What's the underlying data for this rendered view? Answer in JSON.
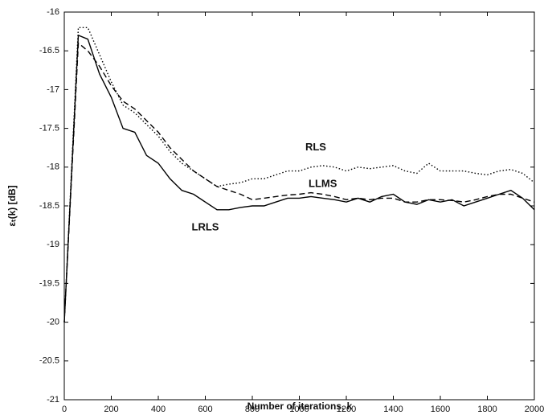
{
  "chart_data": {
    "type": "line",
    "x_label": "Number of iterations, k",
    "y_label": "εₜ(k) [dB]",
    "x": [
      0,
      60,
      100,
      150,
      200,
      250,
      300,
      350,
      400,
      450,
      500,
      550,
      600,
      650,
      700,
      750,
      800,
      850,
      900,
      950,
      1000,
      1050,
      1100,
      1150,
      1200,
      1250,
      1300,
      1350,
      1400,
      1450,
      1500,
      1550,
      1600,
      1650,
      1700,
      1750,
      1800,
      1850,
      1900,
      1950,
      2000
    ],
    "series": [
      {
        "name": "LRLS",
        "color": "#000000",
        "dash": "solid",
        "values": [
          -20,
          -16.3,
          -16.35,
          -16.8,
          -17.1,
          -17.5,
          -17.55,
          -17.85,
          -17.95,
          -18.15,
          -18.3,
          -18.35,
          -18.45,
          -18.55,
          -18.55,
          -18.52,
          -18.5,
          -18.5,
          -18.45,
          -18.4,
          -18.4,
          -18.38,
          -18.4,
          -18.42,
          -18.45,
          -18.4,
          -18.45,
          -18.38,
          -18.35,
          -18.45,
          -18.48,
          -18.42,
          -18.45,
          -18.42,
          -18.5,
          -18.45,
          -18.4,
          -18.35,
          -18.3,
          -18.4,
          -18.55
        ]
      },
      {
        "name": "LLMS",
        "color": "#000000",
        "dash": "dashed",
        "values": [
          -20,
          -16.4,
          -16.5,
          -16.7,
          -16.95,
          -17.15,
          -17.25,
          -17.4,
          -17.55,
          -17.75,
          -17.9,
          -18.05,
          -18.15,
          -18.25,
          -18.3,
          -18.35,
          -18.42,
          -18.4,
          -18.38,
          -18.36,
          -18.35,
          -18.33,
          -18.35,
          -18.38,
          -18.42,
          -18.4,
          -18.42,
          -18.4,
          -18.4,
          -18.45,
          -18.45,
          -18.42,
          -18.42,
          -18.43,
          -18.45,
          -18.42,
          -18.38,
          -18.35,
          -18.35,
          -18.4,
          -18.45
        ]
      },
      {
        "name": "RLS",
        "color": "#000000",
        "dash": "dotted",
        "values": [
          -20,
          -16.2,
          -16.2,
          -16.55,
          -16.9,
          -17.2,
          -17.3,
          -17.45,
          -17.6,
          -17.8,
          -17.95,
          -18.05,
          -18.15,
          -18.25,
          -18.22,
          -18.2,
          -18.15,
          -18.15,
          -18.1,
          -18.05,
          -18.05,
          -18.0,
          -17.98,
          -18.0,
          -18.05,
          -18.0,
          -18.02,
          -18.0,
          -17.98,
          -18.05,
          -18.08,
          -17.95,
          -18.05,
          -18.05,
          -18.05,
          -18.08,
          -18.1,
          -18.05,
          -18.03,
          -18.08,
          -18.2
        ]
      }
    ],
    "xlim": [
      0,
      2000
    ],
    "xticks": [
      0,
      200,
      400,
      600,
      800,
      1000,
      1200,
      1400,
      1600,
      1800,
      2000
    ],
    "ylim": [
      -21,
      -16
    ],
    "yticks": [
      -16,
      -16.5,
      -17,
      -17.5,
      -18,
      -18.5,
      -19,
      -19.5,
      -20,
      -20.5,
      -21
    ],
    "grid": false
  }
}
